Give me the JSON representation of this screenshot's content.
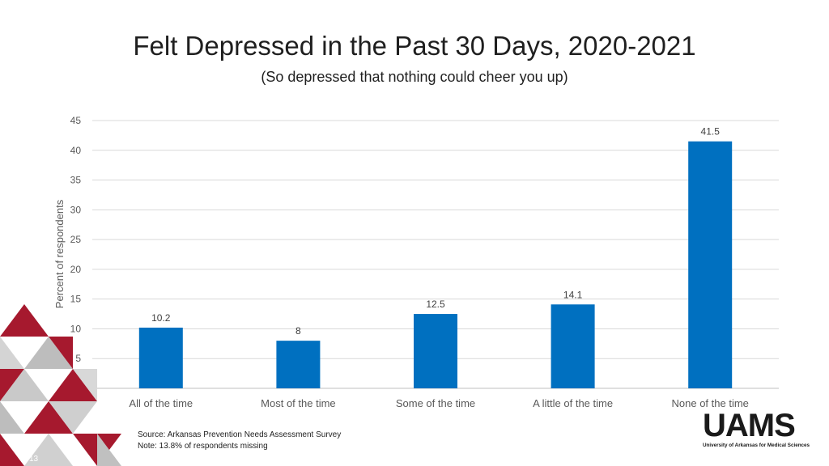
{
  "title": "Felt Depressed in the Past 30 Days, 2020-2021",
  "subtitle": "(So depressed that nothing could cheer you up)",
  "chart_data": {
    "type": "bar",
    "categories": [
      "All of the time",
      "Most of the time",
      "Some of the time",
      "A little of the time",
      "None of the time"
    ],
    "values": [
      10.2,
      8,
      12.5,
      14.1,
      41.5
    ],
    "data_labels": [
      "10.2",
      "8",
      "12.5",
      "14.1",
      "41.5"
    ],
    "ylabel": "Percent of respondents",
    "ylim": [
      0,
      45
    ],
    "yticks": [
      0,
      5,
      10,
      15,
      20,
      25,
      30,
      35,
      40,
      45
    ],
    "grid": true,
    "bar_color": "#0070c0"
  },
  "footnotes": {
    "source": "Source: Arkansas Prevention Needs Assessment Survey",
    "note": "Note: 13.8% of respondents missing"
  },
  "logo": {
    "wordmark": "UAMS",
    "tagline": "University of Arkansas for Medical Sciences"
  },
  "slide_number": "13",
  "colors": {
    "accent_red": "#a6192e",
    "accent_gray": "#c8c8c8"
  }
}
